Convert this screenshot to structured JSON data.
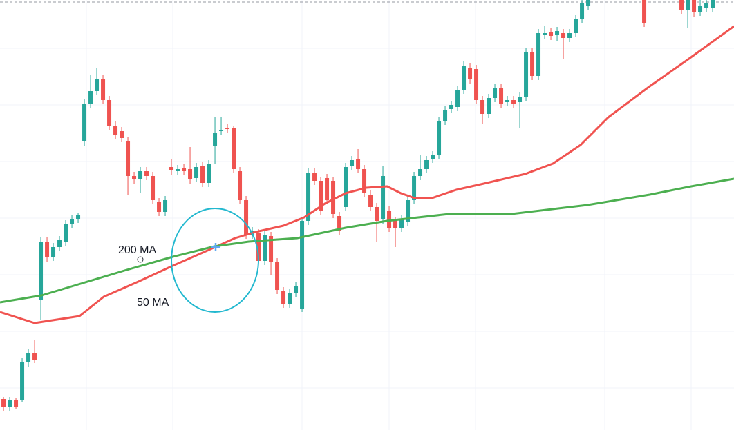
{
  "chart_data": {
    "type": "candlestick",
    "annotations": [
      "200 MA",
      "50 MA"
    ],
    "categories": [
      null,
      null,
      null,
      null,
      null,
      null,
      null,
      null,
      null,
      null,
      null,
      null,
      null,
      null,
      null,
      null,
      null,
      null,
      null,
      null,
      null,
      null,
      null,
      null,
      null,
      null,
      null,
      null,
      null,
      null,
      null,
      null,
      null,
      null,
      null,
      null,
      null,
      null,
      null,
      null,
      null,
      null,
      null,
      null,
      null,
      null,
      null,
      null,
      null,
      null,
      null,
      null,
      null,
      null,
      null,
      null,
      null,
      null,
      null,
      null,
      null,
      null,
      null,
      null,
      null,
      null,
      null,
      null,
      null,
      null,
      null,
      null,
      null,
      null,
      null,
      null,
      null,
      null,
      null,
      null,
      null,
      null,
      null,
      null,
      null,
      null,
      null,
      null,
      null,
      null,
      null,
      null,
      null,
      null,
      null,
      null,
      null,
      null,
      null,
      null,
      null,
      null,
      null,
      null,
      null,
      null,
      null,
      null,
      null,
      null,
      null,
      null,
      null,
      null,
      null
    ],
    "xlim": [
      -0.56,
      117.44
    ],
    "ylim": [
      0,
      623
    ],
    "up_color": "#26a69a",
    "down_color": "#ef5350",
    "open": [
      45,
      33,
      43,
      43,
      98,
      111,
      188,
      273,
      251,
      265,
      273,
      298,
      305,
      418,
      473,
      491,
      508,
      478,
      441,
      433,
      418,
      368,
      363,
      375,
      368,
      330,
      316,
      381,
      375,
      380,
      378,
      365,
      383,
      358,
      411,
      433,
      438,
      438,
      375,
      333,
      283,
      285,
      245,
      281,
      243,
      201,
      183,
      198,
      175,
      303,
      373,
      361,
      365,
      361,
      310,
      323,
      383,
      393,
      378,
      341,
      323,
      305,
      318,
      303,
      293,
      301,
      333,
      368,
      378,
      393,
      398,
      448,
      465,
      468,
      493,
      525,
      523,
      478,
      458,
      481,
      495,
      475,
      478,
      475,
      483,
      548,
      513,
      573,
      577,
      573,
      575,
      568,
      575,
      595,
      615,
      null,
      null,
      null,
      null,
      null,
      null,
      null,
      null,
      623,
      null,
      null,
      null,
      null,
      null,
      623,
      608,
      623,
      605,
      611,
      611
    ],
    "high": [
      48,
      48,
      46,
      104,
      117,
      131,
      279,
      279,
      271,
      281,
      304,
      311,
      314,
      479,
      515,
      525,
      514,
      484,
      447,
      439,
      424,
      374,
      381,
      381,
      374,
      336,
      339,
      392,
      384,
      386,
      410,
      387,
      389,
      391,
      453,
      453,
      444,
      440,
      381,
      339,
      294,
      291,
      289,
      287,
      249,
      207,
      204,
      214,
      309,
      379,
      379,
      367,
      371,
      367,
      316,
      387,
      397,
      407,
      384,
      347,
      329,
      383,
      324,
      309,
      311,
      339,
      374,
      398,
      397,
      404,
      454,
      469,
      477,
      499,
      534,
      531,
      529,
      484,
      487,
      501,
      501,
      484,
      484,
      489,
      554,
      554,
      581,
      585,
      583,
      584,
      581,
      581,
      601,
      624,
      629,
      null,
      null,
      null,
      null,
      null,
      null,
      null,
      null,
      629,
      null,
      null,
      null,
      null,
      null,
      629,
      629,
      629,
      629,
      629,
      629
    ],
    "low": [
      28,
      28,
      30,
      40,
      92,
      97,
      160,
      243,
      245,
      259,
      267,
      292,
      300,
      412,
      467,
      485,
      472,
      435,
      422,
      417,
      340,
      357,
      343,
      362,
      327,
      310,
      310,
      370,
      369,
      369,
      357,
      359,
      352,
      352,
      385,
      427,
      430,
      372,
      327,
      277,
      277,
      239,
      239,
      225,
      197,
      177,
      177,
      192,
      171,
      297,
      355,
      312,
      327,
      307,
      282,
      317,
      377,
      372,
      337,
      317,
      272,
      299,
      287,
      265,
      287,
      295,
      327,
      362,
      372,
      387,
      392,
      442,
      459,
      462,
      487,
      502,
      472,
      443,
      452,
      475,
      467,
      469,
      467,
      438,
      477,
      507,
      507,
      567,
      565,
      563,
      537,
      562,
      569,
      589,
      609,
      null,
      null,
      null,
      null,
      null,
      null,
      null,
      null,
      584,
      null,
      null,
      null,
      null,
      null,
      602,
      582,
      599,
      600,
      605,
      605
    ],
    "close": [
      33,
      43,
      33,
      98,
      111,
      101,
      273,
      251,
      265,
      275,
      298,
      305,
      312,
      473,
      491,
      508,
      478,
      441,
      428,
      423,
      368,
      363,
      375,
      368,
      333,
      316,
      333,
      376,
      378,
      375,
      363,
      381,
      358,
      385,
      431,
      435,
      436,
      378,
      333,
      283,
      288,
      245,
      283,
      243,
      203,
      183,
      198,
      208,
      303,
      373,
      361,
      318,
      333,
      313,
      288,
      381,
      391,
      378,
      343,
      323,
      303,
      368,
      293,
      293,
      305,
      333,
      368,
      378,
      391,
      398,
      448,
      463,
      471,
      493,
      528,
      508,
      478,
      458,
      481,
      495,
      473,
      478,
      473,
      483,
      548,
      513,
      575,
      575,
      571,
      578,
      568,
      575,
      595,
      618,
      623,
      null,
      null,
      null,
      null,
      null,
      null,
      null,
      null,
      590,
      null,
      null,
      null,
      null,
      null,
      608,
      623,
      605,
      615,
      618,
      623
    ],
    "lines": [
      {
        "color": "#f05350",
        "x": [
          -0.56,
          5,
          12.22,
          16.11,
          21.67,
          27.22,
          32.78,
          37.22,
          40.56,
          45,
          48.33,
          51.67,
          55,
          58.33,
          61.67,
          63.89,
          66.11,
          68.89,
          72.78,
          77.22,
          83.89,
          88.33,
          92.78,
          97.22,
          103.89,
          109.44,
          117.44
        ],
        "values": [
          171,
          155,
          165,
          193,
          215,
          238,
          260,
          278,
          287,
          296,
          308,
          328,
          343,
          351,
          353,
          343,
          336,
          336,
          348,
          357,
          371,
          386,
          413,
          453,
          498,
          533,
          585
        ]
      },
      {
        "color": "#4caf50",
        "x": [
          -0.56,
          6.11,
          12.78,
          19.44,
          27.22,
          33.89,
          39.44,
          47.22,
          55,
          61.67,
          71.67,
          81.67,
          93.89,
          103.89,
          110.56,
          117.44
        ],
        "values": [
          185,
          195,
          213,
          231,
          251,
          266,
          273,
          278,
          293,
          303,
          313,
          313,
          326,
          341,
          353,
          364
        ]
      }
    ]
  }
}
